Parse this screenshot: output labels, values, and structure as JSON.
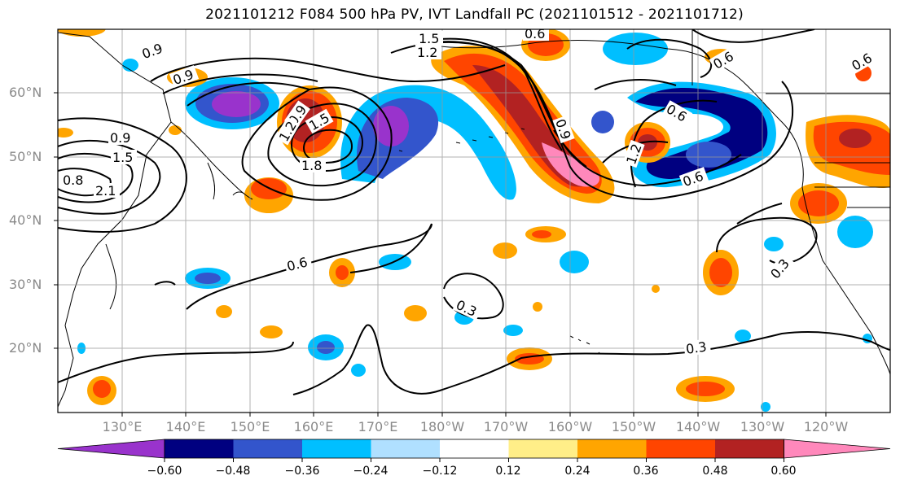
{
  "title": "2021101212 F084 500 hPa PV, IVT Landfall PC (2021101512 - 2021101712)",
  "lat_labels": [
    "60°N",
    "50°N",
    "40°N",
    "30°N",
    "20°N"
  ],
  "lon_labels": [
    "130°E",
    "140°E",
    "150°E",
    "160°E",
    "170°E",
    "180°W",
    "170°W",
    "160°W",
    "150°W",
    "140°W",
    "130°W",
    "120°W"
  ],
  "contour_labels": [
    "0.9",
    "0.9",
    "0.9",
    "1.5",
    "1.2",
    "0.9",
    "1.2",
    "1.5",
    "1.8",
    "1.5",
    "0.8",
    "2.1",
    "0.6",
    "0.6",
    "0.3",
    "0.3",
    "0.3",
    "0.6",
    "0.6",
    "0.9",
    "1.2",
    "0.6",
    "0.6"
  ],
  "colorbar": {
    "ticks": [
      "−0.60",
      "−0.48",
      "−0.36",
      "−0.24",
      "−0.12",
      "0.12",
      "0.24",
      "0.36",
      "0.48",
      "0.60"
    ],
    "colors": [
      "#9933cc",
      "#000080",
      "#3355cc",
      "#00bfff",
      "#b0e0ff",
      "#ffffff",
      "#ffee88",
      "#ffa500",
      "#ff4500",
      "#b22222",
      "#ff88bb"
    ]
  }
}
